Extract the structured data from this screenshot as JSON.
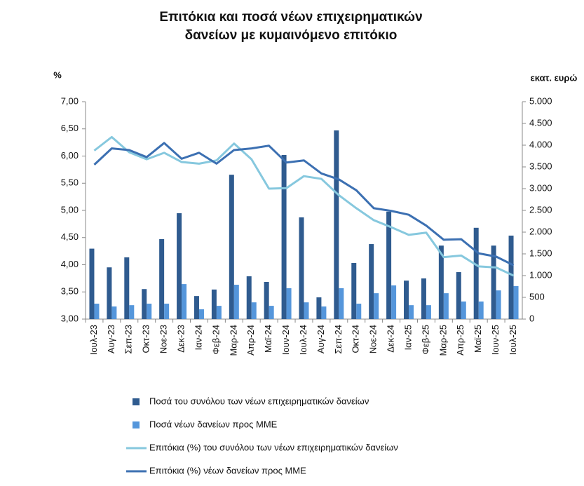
{
  "chart_data": {
    "type": "bar-line",
    "title": "Επιτόκια και ποσά νέων επιχειρηματικών δανείων με κυμαινόμενο επιτόκιο",
    "ylabel": "%",
    "y2label": "εκατ. ευρώ",
    "categories": [
      "Ιουλ-23",
      "Αυγ-23",
      "Σεπ-23",
      "Οκτ-23",
      "Νοε-23",
      "Δεκ-23",
      "Ιαν-24",
      "Φεβ-24",
      "Μαρ-24",
      "Απρ-24",
      "Μαϊ-24",
      "Ιουν-24",
      "Ιουλ-24",
      "Αυγ-24",
      "Σεπ-24",
      "Οκτ-24",
      "Νοε-24",
      "Δεκ-24",
      "Ιαν-25",
      "Φεβ-25",
      "Μαρ-25",
      "Απρ-25",
      "Μαϊ-25",
      "Ιουν-25",
      "Ιουλ-25"
    ],
    "ylim": [
      3,
      7
    ],
    "yticks": [
      {
        "value": 3,
        "label": "3,00"
      },
      {
        "value": 3.5,
        "label": "3,50"
      },
      {
        "value": 4,
        "label": "4,00"
      },
      {
        "value": 4.5,
        "label": "4,50"
      },
      {
        "value": 5,
        "label": "5,00"
      },
      {
        "value": 5.5,
        "label": "5,50"
      },
      {
        "value": 6,
        "label": "6,00"
      },
      {
        "value": 6.5,
        "label": "6,50"
      },
      {
        "value": 7,
        "label": "7,00"
      }
    ],
    "y2lim": [
      0,
      5000
    ],
    "y2ticks": [
      0,
      500,
      {
        "value": 1000,
        "label": "1.000"
      },
      {
        "value": 1500,
        "label": "1.500"
      },
      {
        "value": 2000,
        "label": "2.000"
      },
      {
        "value": 2500,
        "label": "2.500"
      },
      {
        "value": 3000,
        "label": "3.000"
      },
      {
        "value": 3500,
        "label": "3.500"
      },
      {
        "value": 4000,
        "label": "4.000"
      },
      {
        "value": 4500,
        "label": "4.500"
      },
      {
        "value": 5000,
        "label": "5.000"
      }
    ],
    "legend": "bottom",
    "series": [
      {
        "name": "Ποσά του συνόλου των νέων επιχειρηματικών δανείων",
        "kind": "bar",
        "axis": "y2",
        "color": "#2f5b8f",
        "values": [
          1620,
          1190,
          1420,
          690,
          1840,
          2435,
          530,
          680,
          3320,
          985,
          855,
          3775,
          2340,
          500,
          4340,
          1290,
          1725,
          2470,
          885,
          935,
          1690,
          1080,
          2100,
          1690,
          1920
        ]
      },
      {
        "name": "Ποσά νέων δανείων προς ΜΜΕ",
        "kind": "bar",
        "axis": "y2",
        "color": "#5596db",
        "values": [
          355,
          290,
          320,
          355,
          355,
          805,
          225,
          305,
          790,
          385,
          305,
          710,
          385,
          290,
          710,
          355,
          595,
          775,
          320,
          320,
          595,
          405,
          405,
          660,
          760
        ]
      },
      {
        "name": "Επιτόκια (%) του συνόλου των νέων επιχειρηματικών δανείων",
        "kind": "line",
        "color": "#86c8de",
        "values": [
          6.1,
          6.35,
          6.07,
          5.94,
          6.06,
          5.89,
          5.86,
          5.92,
          6.23,
          5.94,
          5.4,
          5.41,
          5.63,
          5.58,
          5.28,
          5.04,
          4.82,
          4.69,
          4.55,
          4.59,
          4.14,
          4.17,
          3.97,
          3.95,
          3.8
        ]
      },
      {
        "name": "Επιτόκια (%) νέων δανείων προς ΜΜΕ",
        "kind": "line",
        "color": "#3c70b2",
        "values": [
          5.84,
          6.14,
          6.11,
          5.98,
          6.24,
          5.95,
          6.06,
          5.86,
          6.11,
          6.14,
          6.19,
          5.88,
          5.92,
          5.68,
          5.57,
          5.37,
          5.04,
          4.99,
          4.92,
          4.72,
          4.46,
          4.47,
          4.21,
          4.15,
          3.99
        ]
      }
    ]
  }
}
